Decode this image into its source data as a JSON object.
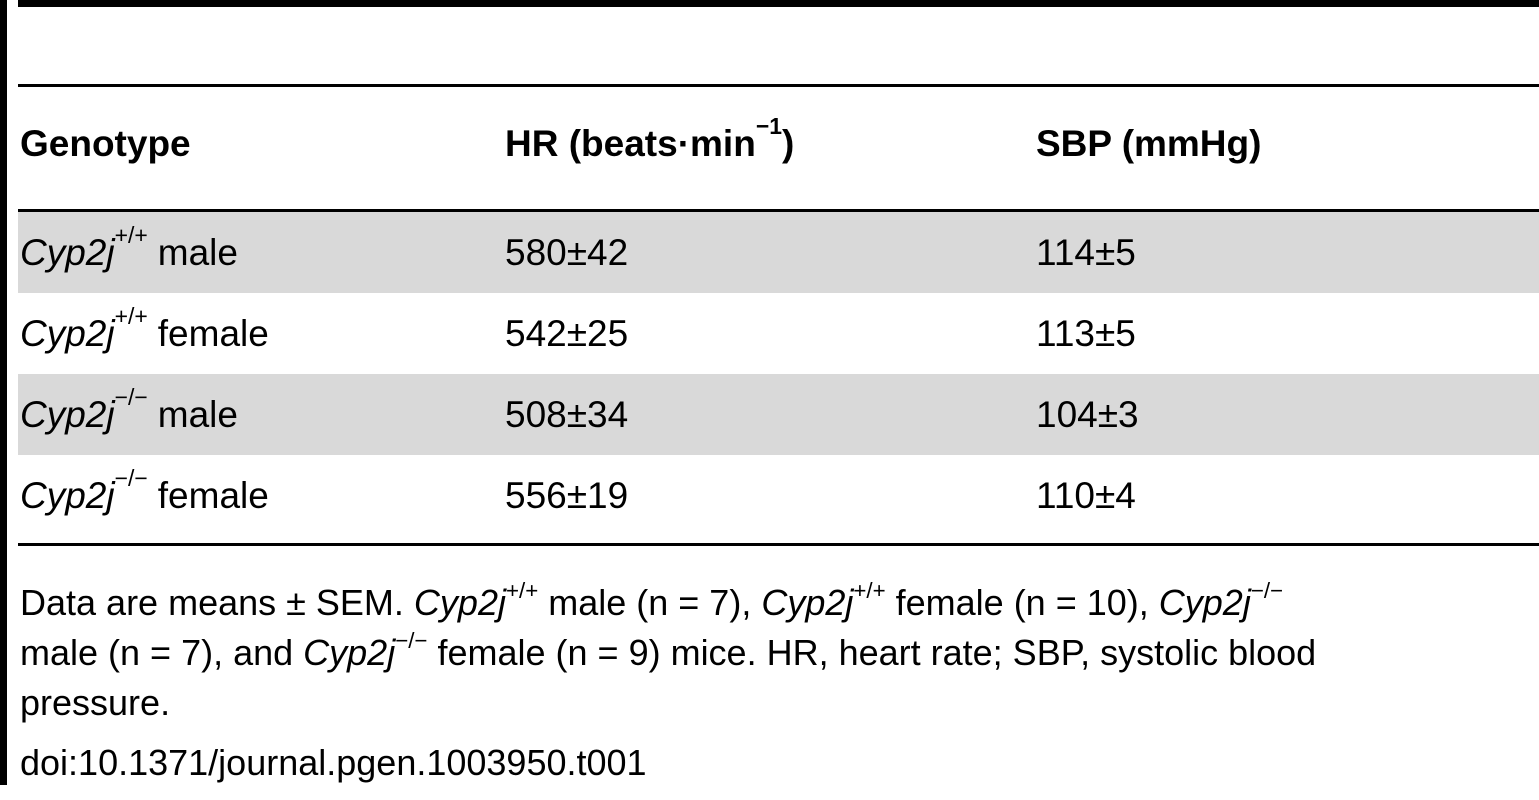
{
  "table": {
    "headers": {
      "genotype": "Genotype",
      "hr_main": "HR (beats·min",
      "hr_sup": "−1",
      "hr_close": ")",
      "sbp": "SBP (mmHg)"
    },
    "rows": [
      {
        "gene": "Cyp2j",
        "sup": "+/+",
        "sex": "male",
        "hr": "580±42",
        "sbp": "114±5"
      },
      {
        "gene": "Cyp2j",
        "sup": "+/+",
        "sex": "female",
        "hr": "542±25",
        "sbp": "113±5"
      },
      {
        "gene": "Cyp2j",
        "sup": "−/−",
        "sex": "male",
        "hr": "508±34",
        "sbp": "104±3"
      },
      {
        "gene": "Cyp2j",
        "sup": "−/−",
        "sex": "female",
        "hr": "556±19",
        "sbp": "110±4"
      }
    ]
  },
  "footnote": {
    "line1": {
      "t1": "Data are means ± SEM. ",
      "g1": "Cyp2j",
      "s1": "+/+",
      "t2": " male (n = 7), ",
      "g2": "Cyp2j",
      "s2": "+/+",
      "t3": " female (n = 10), ",
      "g3": "Cyp2j",
      "s3": "−/−"
    },
    "line2": {
      "t1": "male (n = 7), and ",
      "g1": "Cyp2j",
      "s1": "−/−",
      "t2": " female (n = 9) mice. HR, heart rate; SBP, systolic blood"
    },
    "line3": "pressure."
  },
  "doi": "doi:10.1371/journal.pgen.1003950.t001",
  "colors": {
    "shaded_row": "#d9d9d9",
    "rule": "#000000"
  }
}
